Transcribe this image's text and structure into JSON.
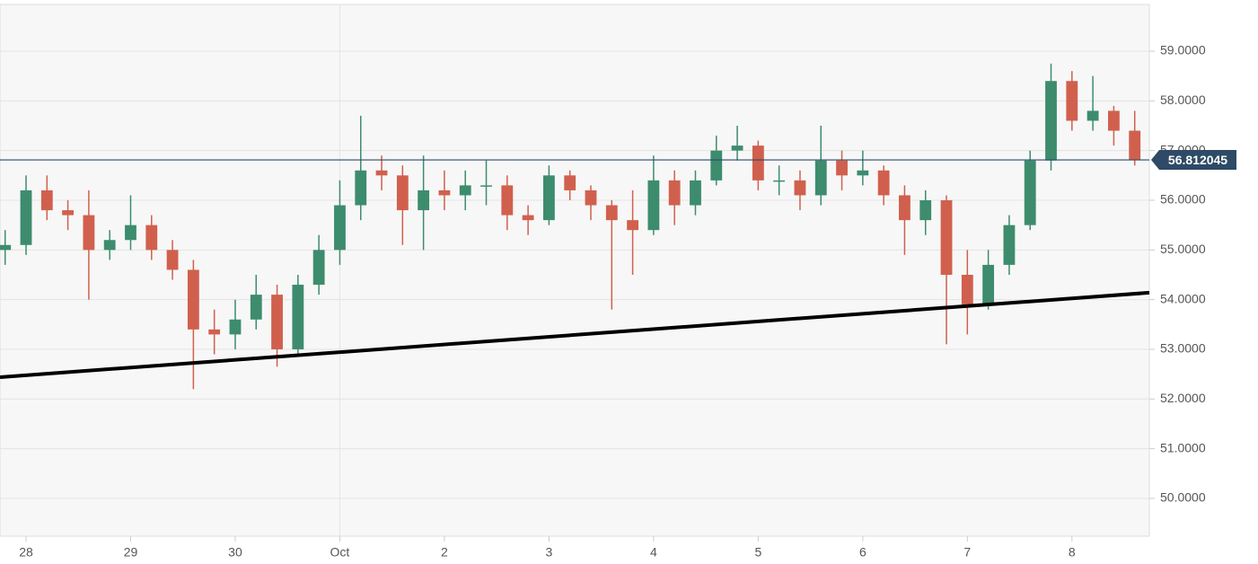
{
  "chart_data": {
    "type": "candlestick",
    "x": [
      -0.2,
      0,
      0.2,
      0.4,
      0.6,
      0.8,
      1.0,
      1.2,
      1.4,
      1.6,
      1.8,
      2.0,
      2.2,
      2.4,
      2.6,
      2.8,
      3.0,
      3.2,
      3.4,
      3.6,
      3.8,
      4.0,
      4.2,
      4.4,
      4.6,
      4.8,
      5.0,
      5.2,
      5.4,
      5.6,
      5.8,
      6.0,
      6.2,
      6.4,
      6.6,
      6.8,
      7.0,
      7.2,
      7.4,
      7.6,
      7.8,
      8.0,
      8.2,
      8.4,
      8.6,
      8.8,
      9.0,
      9.2,
      9.4,
      9.6,
      9.8,
      10.0,
      10.2,
      10.4,
      10.6
    ],
    "open": [
      55.0,
      55.1,
      56.2,
      55.8,
      55.7,
      55.0,
      55.2,
      55.5,
      55.0,
      54.6,
      53.4,
      53.3,
      53.6,
      54.1,
      53.0,
      54.3,
      55.0,
      55.9,
      56.6,
      56.5,
      55.8,
      56.2,
      56.1,
      56.3,
      56.3,
      55.7,
      55.6,
      56.5,
      56.2,
      55.9,
      55.6,
      55.4,
      56.4,
      55.9,
      56.4,
      57.0,
      57.1,
      56.4,
      56.4,
      56.1,
      56.8,
      56.5,
      56.6,
      56.1,
      55.6,
      56.0,
      54.5,
      53.9,
      54.7,
      55.5,
      56.8,
      58.4,
      57.6,
      57.8,
      57.4
    ],
    "high": [
      55.4,
      56.5,
      56.5,
      56.0,
      56.2,
      55.4,
      56.1,
      55.7,
      55.2,
      54.8,
      53.8,
      54.0,
      54.5,
      54.3,
      54.5,
      55.3,
      56.4,
      57.7,
      56.9,
      56.7,
      56.9,
      56.6,
      56.6,
      56.8,
      56.5,
      55.9,
      56.7,
      56.6,
      56.3,
      56.0,
      56.2,
      56.9,
      56.6,
      56.6,
      57.3,
      57.5,
      57.2,
      56.7,
      56.6,
      57.5,
      57.0,
      57.0,
      56.7,
      56.3,
      56.2,
      56.1,
      55.0,
      55.0,
      55.7,
      57.0,
      58.75,
      58.6,
      58.5,
      57.9,
      57.8
    ],
    "low": [
      54.7,
      54.9,
      55.6,
      55.4,
      54.0,
      54.8,
      55.0,
      54.8,
      54.4,
      52.2,
      52.9,
      53.0,
      53.4,
      52.65,
      52.9,
      54.1,
      54.7,
      55.6,
      56.2,
      55.1,
      55.0,
      55.8,
      55.8,
      55.9,
      55.4,
      55.3,
      55.5,
      56.0,
      55.6,
      53.8,
      54.5,
      55.3,
      55.5,
      55.7,
      56.3,
      56.8,
      56.2,
      56.1,
      55.8,
      55.9,
      56.2,
      56.3,
      55.9,
      54.9,
      55.3,
      53.1,
      53.3,
      53.8,
      54.5,
      55.4,
      56.6,
      57.4,
      57.4,
      57.1,
      56.7
    ],
    "close": [
      55.1,
      56.2,
      55.8,
      55.7,
      55.0,
      55.2,
      55.5,
      55.0,
      54.6,
      53.4,
      53.3,
      53.6,
      54.1,
      53.0,
      54.3,
      55.0,
      55.9,
      56.6,
      56.5,
      55.8,
      56.2,
      56.1,
      56.3,
      56.3,
      55.7,
      55.6,
      56.5,
      56.2,
      55.9,
      55.6,
      55.4,
      56.4,
      55.9,
      56.4,
      57.0,
      57.1,
      56.4,
      56.4,
      56.1,
      56.8,
      56.5,
      56.6,
      56.1,
      55.6,
      56.0,
      54.5,
      53.9,
      54.7,
      55.5,
      56.8,
      58.4,
      57.6,
      57.8,
      57.4,
      56.81
    ],
    "up_color": "#3d8c6e",
    "down_color": "#d0604d",
    "xlim": [
      -0.249,
      10.74
    ],
    "xticks": [
      {
        "value": 0,
        "label": "28"
      },
      {
        "value": 1,
        "label": "29"
      },
      {
        "value": 2,
        "label": "30"
      },
      {
        "value": 3,
        "label": "Oct",
        "grid": true
      },
      {
        "value": 4,
        "label": "2"
      },
      {
        "value": 5,
        "label": "3"
      },
      {
        "value": 6,
        "label": "4"
      },
      {
        "value": 7,
        "label": "5"
      },
      {
        "value": 8,
        "label": "6"
      },
      {
        "value": 9,
        "label": "7"
      },
      {
        "value": 10,
        "label": "8"
      }
    ],
    "ylim": [
      49.24,
      59.94
    ],
    "yticks": [
      {
        "value": 50,
        "label": "50.0000"
      },
      {
        "value": 51,
        "label": "51.0000"
      },
      {
        "value": 52,
        "label": "52.0000"
      },
      {
        "value": 53,
        "label": "53.0000"
      },
      {
        "value": 54,
        "label": "54.0000"
      },
      {
        "value": 55,
        "label": "55.0000"
      },
      {
        "value": 56,
        "label": "56.0000"
      },
      {
        "value": 57,
        "label": "57.0000"
      },
      {
        "value": 58,
        "label": "58.0000"
      },
      {
        "value": 59,
        "label": "59.0000"
      }
    ],
    "grid": true,
    "current_price": {
      "value": 56.812045,
      "color": "#2e4a66"
    },
    "trendline": {
      "x": [
        -0.249,
        10.74
      ],
      "y": [
        52.44,
        54.14
      ],
      "color": "#000000"
    }
  }
}
